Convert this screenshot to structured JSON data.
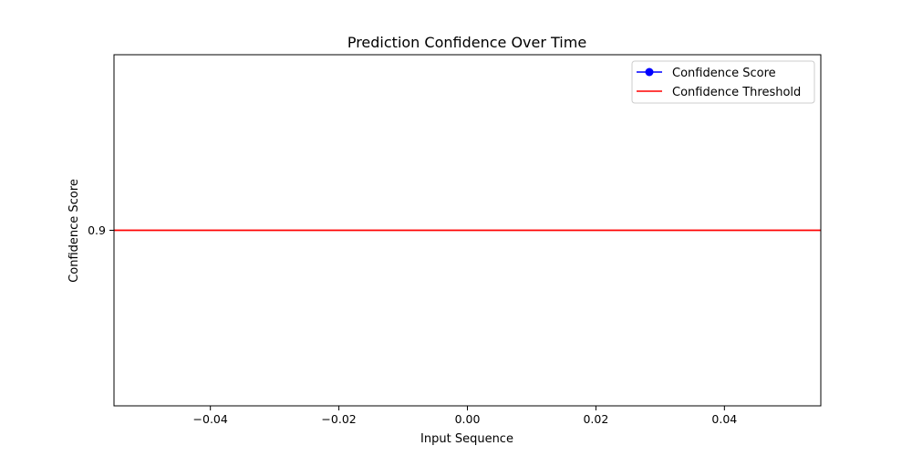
{
  "chart_data": {
    "type": "line",
    "title": "Prediction Confidence Over Time",
    "xlabel": "Input Sequence",
    "ylabel": "Confidence Score",
    "xlim": [
      -0.055,
      0.055
    ],
    "ylim": [
      0.8,
      1.0
    ],
    "x_ticks": [
      -0.04,
      -0.02,
      0.0,
      0.02,
      0.04
    ],
    "x_tick_labels": [
      "−0.04",
      "−0.02",
      "0.00",
      "0.02",
      "0.04"
    ],
    "y_ticks": [
      0.9
    ],
    "y_tick_labels": [
      "0.9"
    ],
    "grid": false,
    "legend_position": "top-right",
    "series": [
      {
        "name": "Confidence Score",
        "color": "#0000ff",
        "marker": "circle",
        "x": [],
        "y": []
      }
    ],
    "reference_lines": [
      {
        "name": "Confidence Threshold",
        "orientation": "horizontal",
        "value": 0.9,
        "color": "#ff0000"
      }
    ]
  }
}
